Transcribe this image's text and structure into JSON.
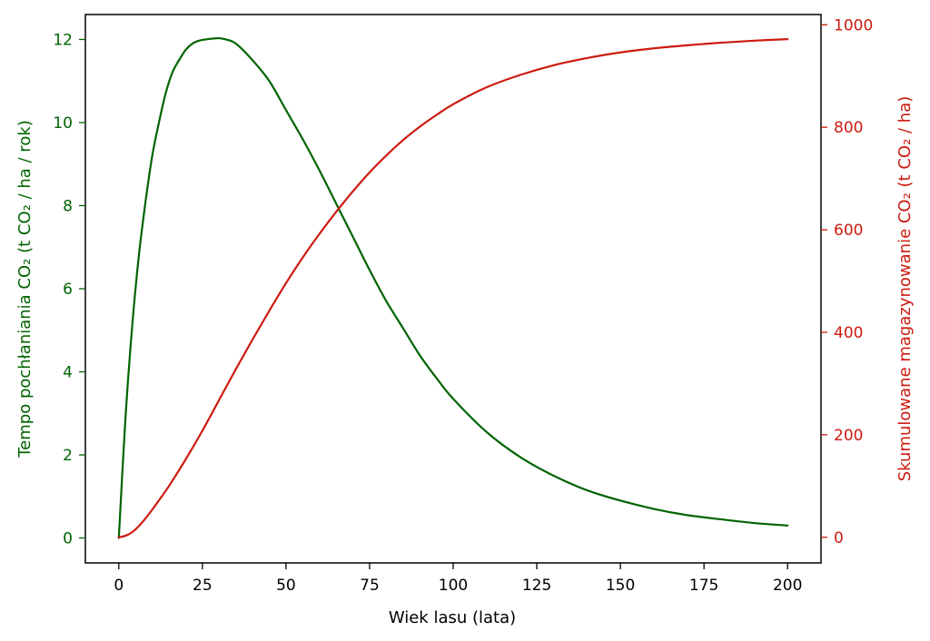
{
  "chart_data": {
    "type": "line",
    "title": "",
    "xlabel": "Wiek lasu (lata)",
    "ylabel_left": "Tempo pochłaniania CO₂ (t CO₂ / ha / rok)",
    "ylabel_right": "Skumulowane magazynowanie CO₂ (t CO₂ / ha)",
    "xlim": [
      -10,
      210
    ],
    "ylim_left": [
      -0.6,
      12.6
    ],
    "ylim_right": [
      -50,
      1020
    ],
    "x_ticks": [
      0,
      25,
      50,
      75,
      100,
      125,
      150,
      175,
      200
    ],
    "y_left_ticks": [
      0,
      2,
      4,
      6,
      8,
      10,
      12
    ],
    "y_right_ticks": [
      0,
      200,
      400,
      600,
      800,
      1000
    ],
    "grid": false,
    "colors": {
      "left": "#006400",
      "right": "#cc1b10",
      "axis": "#000000"
    },
    "series": [
      {
        "axis": "left",
        "color": "#006400",
        "x": [
          0,
          2,
          4,
          6,
          8,
          10,
          12,
          14,
          16,
          18,
          20,
          22,
          24,
          26,
          28,
          30,
          32,
          35,
          40,
          45,
          50,
          55,
          60,
          65,
          70,
          75,
          80,
          85,
          90,
          95,
          100,
          110,
          120,
          130,
          140,
          150,
          160,
          170,
          180,
          190,
          200
        ],
        "values": [
          0,
          2.9,
          5.1,
          6.8,
          8.1,
          9.2,
          10.0,
          10.7,
          11.2,
          11.5,
          11.75,
          11.9,
          11.97,
          12.0,
          12.02,
          12.03,
          12.0,
          11.9,
          11.5,
          11.0,
          10.3,
          9.6,
          8.85,
          8.05,
          7.25,
          6.45,
          5.7,
          5.05,
          4.4,
          3.85,
          3.35,
          2.55,
          1.95,
          1.5,
          1.15,
          0.9,
          0.7,
          0.55,
          0.45,
          0.36,
          0.3
        ]
      },
      {
        "axis": "right",
        "color": "#cc1b10",
        "x": [
          0,
          2,
          4,
          6,
          8,
          10,
          12,
          15,
          20,
          25,
          30,
          35,
          40,
          45,
          50,
          55,
          60,
          65,
          70,
          75,
          80,
          85,
          90,
          95,
          100,
          110,
          120,
          130,
          140,
          150,
          160,
          170,
          180,
          190,
          200
        ],
        "values": [
          0,
          3,
          10,
          22,
          37,
          54,
          72,
          100,
          152,
          208,
          268,
          328,
          386,
          442,
          496,
          546,
          592,
          635,
          675,
          712,
          745,
          775,
          801,
          824,
          845,
          878,
          902,
          921,
          935,
          946,
          954,
          960,
          965,
          969,
          972
        ]
      }
    ]
  }
}
